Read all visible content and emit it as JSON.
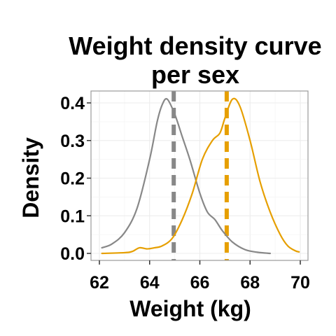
{
  "chart_data": {
    "type": "line",
    "title_lines": [
      "Weight density curve",
      "per sex"
    ],
    "xlabel": "Weight (kg)",
    "ylabel": "Density",
    "xlim": [
      62,
      70
    ],
    "ylim": [
      0,
      0.4
    ],
    "x_ticks": [
      62,
      64,
      66,
      68,
      70
    ],
    "x_tick_labels": [
      "62",
      "64",
      "66",
      "68",
      "70"
    ],
    "y_ticks": [
      0,
      0.1,
      0.2,
      0.3,
      0.4
    ],
    "y_tick_labels": [
      "0.0",
      "0.1",
      "0.2",
      "0.3",
      "0.4"
    ],
    "grid": true,
    "legend": "none",
    "series": [
      {
        "color": "#888888",
        "mean": 64.96,
        "x": [
          62.1,
          62.5,
          63.0,
          63.5,
          64.0,
          64.3,
          64.5,
          64.7,
          65.0,
          65.3,
          65.6,
          66.0,
          66.3,
          66.6,
          66.9,
          67.3,
          67.8,
          68.3,
          68.8
        ],
        "y": [
          0.015,
          0.025,
          0.055,
          0.12,
          0.25,
          0.35,
          0.395,
          0.41,
          0.37,
          0.31,
          0.25,
          0.16,
          0.11,
          0.09,
          0.06,
          0.03,
          0.01,
          0.003,
          0.0
        ]
      },
      {
        "color": "#E69F00",
        "mean": 67.07,
        "x": [
          62.1,
          63.0,
          63.3,
          63.6,
          63.9,
          64.2,
          64.5,
          64.9,
          65.3,
          65.7,
          66.1,
          66.5,
          66.8,
          67.0,
          67.3,
          67.6,
          68.0,
          68.4,
          68.8,
          69.2,
          69.5,
          69.8,
          69.95
        ],
        "y": [
          0.0,
          0.002,
          0.005,
          0.015,
          0.012,
          0.015,
          0.02,
          0.04,
          0.09,
          0.16,
          0.25,
          0.3,
          0.32,
          0.36,
          0.41,
          0.39,
          0.3,
          0.19,
          0.11,
          0.05,
          0.02,
          0.007,
          0.004
        ]
      }
    ]
  }
}
